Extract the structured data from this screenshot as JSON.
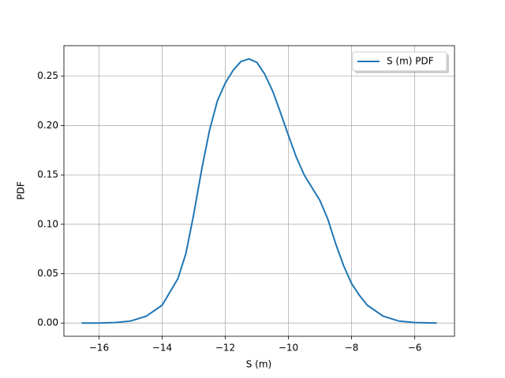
{
  "chart_data": {
    "type": "line",
    "xlabel": "S (m)",
    "ylabel": "PDF",
    "x": [
      -16.55,
      -16,
      -15.5,
      -15,
      -14.5,
      -14,
      -13.5,
      -13.25,
      -13,
      -12.75,
      -12.5,
      -12.25,
      -12,
      -11.75,
      -11.5,
      -11.25,
      -11,
      -10.75,
      -10.5,
      -10.25,
      -10,
      -9.75,
      -9.5,
      -9.25,
      -9,
      -8.75,
      -8.5,
      -8.25,
      -8,
      -7.75,
      -7.5,
      -7,
      -6.5,
      -6,
      -5.3
    ],
    "series": [
      {
        "name": "S (m) PDF",
        "color": "#1f77b4",
        "values": [
          0,
          0,
          0.0005,
          0.002,
          0.007,
          0.018,
          0.045,
          0.07,
          0.11,
          0.155,
          0.195,
          0.225,
          0.243,
          0.256,
          0.265,
          0.2675,
          0.264,
          0.252,
          0.235,
          0.213,
          0.19,
          0.168,
          0.15,
          0.137,
          0.124,
          0.105,
          0.08,
          0.058,
          0.04,
          0.028,
          0.018,
          0.007,
          0.002,
          0.0005,
          0
        ]
      }
    ],
    "xlim": [
      -17.11,
      -4.74
    ],
    "ylim": [
      -0.0134,
      0.2809
    ],
    "xticks": [
      {
        "value": -16,
        "label": "−16"
      },
      {
        "value": -14,
        "label": "−14"
      },
      {
        "value": -12,
        "label": "−12"
      },
      {
        "value": -10,
        "label": "−10"
      },
      {
        "value": -8,
        "label": "−8"
      },
      {
        "value": -6,
        "label": "−6"
      }
    ],
    "yticks": [
      {
        "value": 0,
        "label": "0.00"
      },
      {
        "value": 0.05,
        "label": "0.05"
      },
      {
        "value": 0.1,
        "label": "0.10"
      },
      {
        "value": 0.15,
        "label": "0.15"
      },
      {
        "value": 0.2,
        "label": "0.20"
      },
      {
        "value": 0.25,
        "label": "0.25"
      }
    ],
    "grid": true,
    "legend": "upper right"
  }
}
